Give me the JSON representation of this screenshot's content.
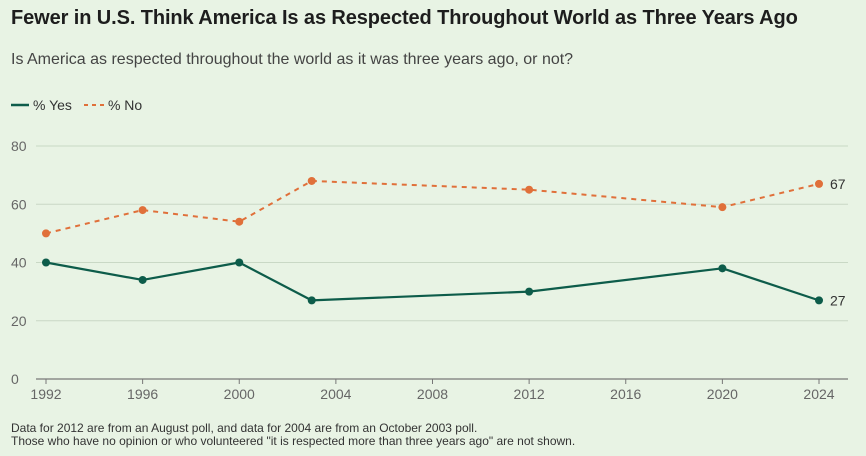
{
  "header": {
    "title": "Fewer in U.S. Think America Is as Respected Throughout World as Three Years Ago",
    "subtitle": "Is America as respected throughout the world as it was three years ago, or not?"
  },
  "legend": {
    "yes_label": "% Yes",
    "no_label": "% No"
  },
  "colors": {
    "yes": "#0d5c4a",
    "no": "#e0703a",
    "grid": "#c9d8c5",
    "axis": "#777777",
    "background": "#e8f3e4"
  },
  "notes": [
    "Data for 2012 are from an August poll, and data for 2004 are from an October 2003 poll.",
    "Those who have no opinion or who volunteered \"it is respected more than three years ago\" are not shown."
  ],
  "chart_data": {
    "type": "line",
    "title": "Fewer in U.S. Think America Is as Respected Throughout World as Three Years Ago",
    "xlim": [
      1992,
      2024
    ],
    "ylim": [
      0,
      80
    ],
    "x_ticks": [
      "1992",
      "1996",
      "2000",
      "2004",
      "2008",
      "2012",
      "2016",
      "2020",
      "2024"
    ],
    "y_ticks": [
      "0",
      "20",
      "40",
      "60",
      "80"
    ],
    "grid": true,
    "legend_position": "top-left",
    "series": [
      {
        "name": "% Yes",
        "style": "solid",
        "x": [
          1992,
          1996,
          2000,
          2003,
          2012,
          2020,
          2024
        ],
        "values": [
          40,
          34,
          40,
          27,
          30,
          38,
          27
        ],
        "end_label": "27"
      },
      {
        "name": "% No",
        "style": "dashed",
        "x": [
          1992,
          1996,
          2000,
          2003,
          2012,
          2020,
          2024
        ],
        "values": [
          50,
          58,
          54,
          68,
          65,
          59,
          67
        ],
        "end_label": "67"
      }
    ]
  }
}
